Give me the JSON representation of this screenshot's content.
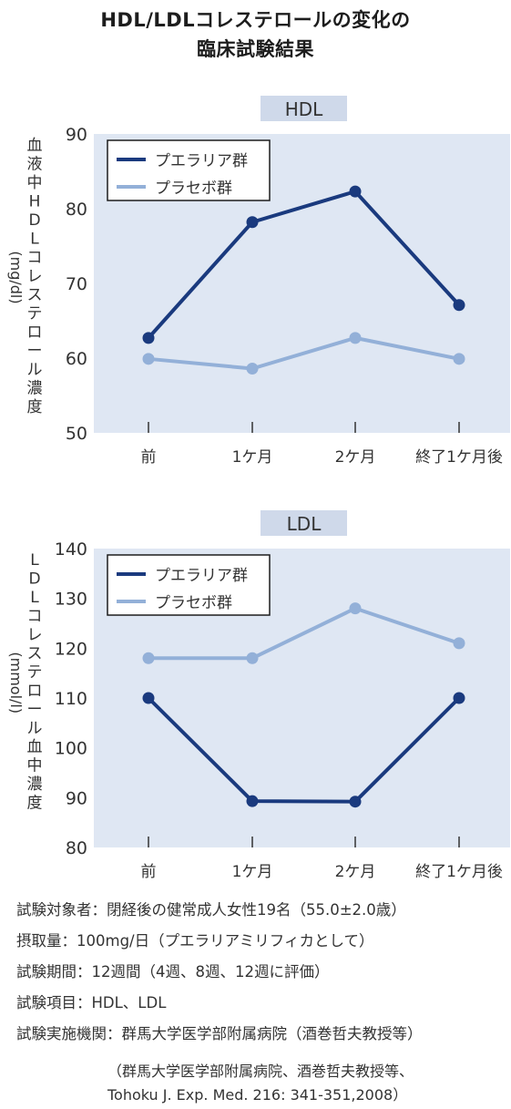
{
  "title_line1": "HDL/LDLコレステロールの変化の",
  "title_line2": "臨床試験結果",
  "chart_data": [
    {
      "type": "line",
      "title": "HDL",
      "ylabel": "血液中HDLコレステロール濃度",
      "yunit": "(mg/dl)",
      "categories": [
        "前",
        "1ケ月",
        "2ケ月",
        "終了1ケ月後"
      ],
      "yticks": [
        50,
        60,
        70,
        80,
        90
      ],
      "ylim": [
        50,
        90
      ],
      "grid": false,
      "legend": "top-left",
      "series": [
        {
          "name": "プエラリア群",
          "values": [
            62.7,
            78.2,
            82.3,
            67.1
          ],
          "color": "#1a3a7e"
        },
        {
          "name": "プラセボ群",
          "values": [
            59.9,
            58.6,
            62.7,
            59.9
          ],
          "color": "#93b0d8"
        }
      ]
    },
    {
      "type": "line",
      "title": "LDL",
      "ylabel": "LDLコレステロール血中濃度",
      "yunit": "(mmol/l)",
      "categories": [
        "前",
        "1ケ月",
        "2ケ月",
        "終了1ケ月後"
      ],
      "yticks": [
        80,
        90,
        100,
        110,
        120,
        130,
        140
      ],
      "ylim": [
        80,
        140
      ],
      "grid": false,
      "legend": "top-left",
      "series": [
        {
          "name": "プエラリア群",
          "values": [
            110,
            89.3,
            89.2,
            110
          ],
          "color": "#1a3a7e"
        },
        {
          "name": "プラセボ群",
          "values": [
            118,
            118,
            128,
            121
          ],
          "color": "#93b0d8"
        }
      ]
    }
  ],
  "notes": [
    "試験対象者：閉経後の健常成人女性19名（55.0±2.0歳）",
    "摂取量：100mg/日（プエラリアミリフィカとして）",
    "試験期間：12週間（4週、8週、12週に評価）",
    "試験項目：HDL、LDL",
    "試験実施機関：群馬大学医学部附属病院（酒巻哲夫教授等）"
  ],
  "citation_line1": "（群馬大学医学部附属病院、酒巻哲夫教授等、",
  "citation_line2": "Tohoku J. Exp. Med. 216: 341-351,2008）"
}
